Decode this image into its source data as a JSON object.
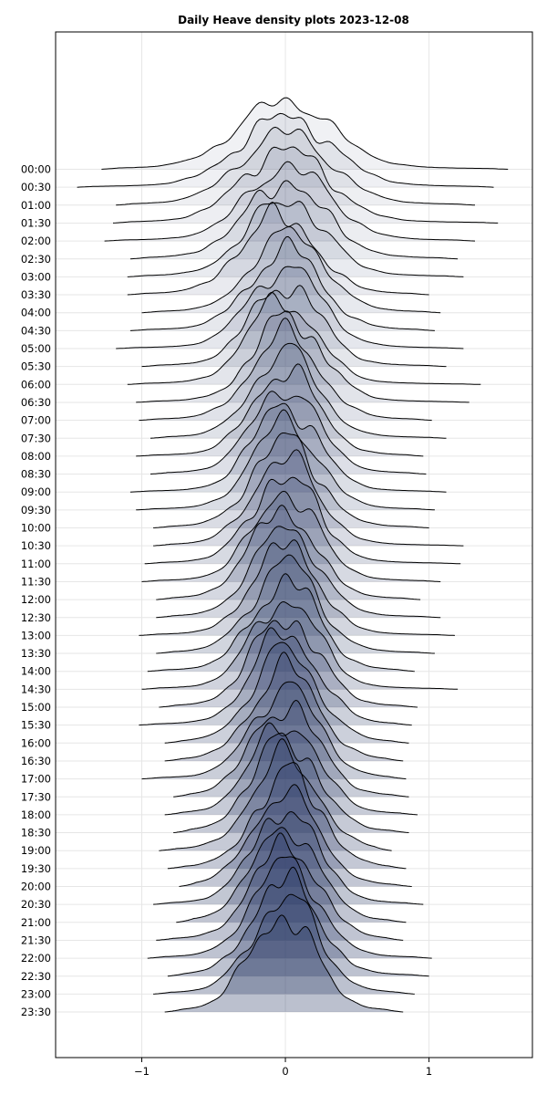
{
  "chart_data": {
    "type": "area",
    "subtype": "ridgeline-density",
    "title": "Daily Heave density plots 2023-12-08",
    "xlabel": "",
    "ylabel": "",
    "xlim": [
      -1.6,
      1.72
    ],
    "x_ticks": [
      -1,
      0,
      1
    ],
    "x_tick_labels": [
      "−1",
      "0",
      "1"
    ],
    "grid": true,
    "fill_color": "#2b3a67",
    "fill_opacity_range": [
      0.07,
      0.32
    ],
    "line_color": "#000000",
    "series": [
      {
        "name": "00:00",
        "range": [
          -1.28,
          1.55
        ],
        "peak": 0.0,
        "spread": 0.32,
        "amp": 0.92
      },
      {
        "name": "00:30",
        "range": [
          -1.45,
          1.45
        ],
        "peak": 0.0,
        "spread": 0.31,
        "amp": 0.94
      },
      {
        "name": "01:00",
        "range": [
          -1.18,
          1.32
        ],
        "peak": 0.0,
        "spread": 0.3,
        "amp": 0.97
      },
      {
        "name": "01:30",
        "range": [
          -1.2,
          1.48
        ],
        "peak": 0.0,
        "spread": 0.29,
        "amp": 0.99
      },
      {
        "name": "02:00",
        "range": [
          -1.26,
          1.32
        ],
        "peak": 0.02,
        "spread": 0.28,
        "amp": 1.0
      },
      {
        "name": "02:30",
        "range": [
          -1.08,
          1.2
        ],
        "peak": 0.0,
        "spread": 0.27,
        "amp": 1.02
      },
      {
        "name": "03:00",
        "range": [
          -1.1,
          1.24
        ],
        "peak": 0.0,
        "spread": 0.26,
        "amp": 1.04
      },
      {
        "name": "03:30",
        "range": [
          -1.1,
          1.0
        ],
        "peak": -0.05,
        "spread": 0.25,
        "amp": 1.06
      },
      {
        "name": "04:00",
        "range": [
          -1.0,
          1.08
        ],
        "peak": 0.02,
        "spread": 0.24,
        "amp": 1.08
      },
      {
        "name": "04:30",
        "range": [
          -1.08,
          1.04
        ],
        "peak": 0.0,
        "spread": 0.24,
        "amp": 1.08
      },
      {
        "name": "05:00",
        "range": [
          -1.18,
          1.24
        ],
        "peak": 0.0,
        "spread": 0.24,
        "amp": 1.1
      },
      {
        "name": "05:30",
        "range": [
          -1.0,
          1.12
        ],
        "peak": 0.0,
        "spread": 0.23,
        "amp": 1.12
      },
      {
        "name": "06:00",
        "range": [
          -1.1,
          1.36
        ],
        "peak": -0.02,
        "spread": 0.23,
        "amp": 1.14
      },
      {
        "name": "06:30",
        "range": [
          -1.04,
          1.28
        ],
        "peak": 0.02,
        "spread": 0.23,
        "amp": 1.14
      },
      {
        "name": "07:00",
        "range": [
          -1.02,
          1.02
        ],
        "peak": 0.0,
        "spread": 0.23,
        "amp": 1.14
      },
      {
        "name": "07:30",
        "range": [
          -0.94,
          1.12
        ],
        "peak": 0.0,
        "spread": 0.22,
        "amp": 1.16
      },
      {
        "name": "08:00",
        "range": [
          -1.04,
          0.96
        ],
        "peak": 0.0,
        "spread": 0.22,
        "amp": 1.16
      },
      {
        "name": "08:30",
        "range": [
          -0.94,
          0.98
        ],
        "peak": 0.0,
        "spread": 0.22,
        "amp": 1.17
      },
      {
        "name": "09:00",
        "range": [
          -1.08,
          1.12
        ],
        "peak": 0.0,
        "spread": 0.22,
        "amp": 1.17
      },
      {
        "name": "09:30",
        "range": [
          -1.04,
          1.04
        ],
        "peak": 0.0,
        "spread": 0.22,
        "amp": 1.18
      },
      {
        "name": "10:00",
        "range": [
          -0.92,
          1.0
        ],
        "peak": 0.0,
        "spread": 0.22,
        "amp": 1.18
      },
      {
        "name": "10:30",
        "range": [
          -0.92,
          1.24
        ],
        "peak": 0.0,
        "spread": 0.22,
        "amp": 1.18
      },
      {
        "name": "11:00",
        "range": [
          -0.98,
          1.22
        ],
        "peak": 0.0,
        "spread": 0.22,
        "amp": 1.19
      },
      {
        "name": "11:30",
        "range": [
          -1.0,
          1.08
        ],
        "peak": 0.0,
        "spread": 0.22,
        "amp": 1.19
      },
      {
        "name": "12:00",
        "range": [
          -0.9,
          0.94
        ],
        "peak": -0.02,
        "spread": 0.22,
        "amp": 1.2
      },
      {
        "name": "12:30",
        "range": [
          -0.9,
          1.08
        ],
        "peak": 0.0,
        "spread": 0.22,
        "amp": 1.2
      },
      {
        "name": "13:00",
        "range": [
          -1.02,
          1.18
        ],
        "peak": 0.0,
        "spread": 0.22,
        "amp": 1.21
      },
      {
        "name": "13:30",
        "range": [
          -0.9,
          1.04
        ],
        "peak": 0.0,
        "spread": 0.22,
        "amp": 1.21
      },
      {
        "name": "14:00",
        "range": [
          -0.96,
          0.9
        ],
        "peak": 0.0,
        "spread": 0.22,
        "amp": 1.22
      },
      {
        "name": "14:30",
        "range": [
          -1.0,
          1.2
        ],
        "peak": 0.0,
        "spread": 0.22,
        "amp": 1.22
      },
      {
        "name": "15:00",
        "range": [
          -0.88,
          0.92
        ],
        "peak": 0.0,
        "spread": 0.22,
        "amp": 1.22
      },
      {
        "name": "15:30",
        "range": [
          -1.02,
          0.88
        ],
        "peak": 0.0,
        "spread": 0.22,
        "amp": 1.23
      },
      {
        "name": "16:00",
        "range": [
          -0.84,
          0.86
        ],
        "peak": 0.0,
        "spread": 0.22,
        "amp": 1.23
      },
      {
        "name": "16:30",
        "range": [
          -0.84,
          0.82
        ],
        "peak": 0.0,
        "spread": 0.22,
        "amp": 1.24
      },
      {
        "name": "17:00",
        "range": [
          -1.0,
          0.84
        ],
        "peak": 0.0,
        "spread": 0.22,
        "amp": 1.24
      },
      {
        "name": "17:30",
        "range": [
          -0.78,
          0.86
        ],
        "peak": 0.0,
        "spread": 0.22,
        "amp": 1.25
      },
      {
        "name": "18:00",
        "range": [
          -0.84,
          0.92
        ],
        "peak": 0.0,
        "spread": 0.22,
        "amp": 1.25
      },
      {
        "name": "18:30",
        "range": [
          -0.78,
          0.86
        ],
        "peak": 0.0,
        "spread": 0.22,
        "amp": 1.26
      },
      {
        "name": "19:00",
        "range": [
          -0.88,
          0.74
        ],
        "peak": 0.0,
        "spread": 0.22,
        "amp": 1.26
      },
      {
        "name": "19:30",
        "range": [
          -0.82,
          0.84
        ],
        "peak": 0.02,
        "spread": 0.22,
        "amp": 1.27
      },
      {
        "name": "20:00",
        "range": [
          -0.74,
          0.88
        ],
        "peak": 0.0,
        "spread": 0.22,
        "amp": 1.27
      },
      {
        "name": "20:30",
        "range": [
          -0.92,
          0.96
        ],
        "peak": 0.0,
        "spread": 0.22,
        "amp": 1.28
      },
      {
        "name": "21:00",
        "range": [
          -0.76,
          0.84
        ],
        "peak": 0.0,
        "spread": 0.22,
        "amp": 1.28
      },
      {
        "name": "21:30",
        "range": [
          -0.9,
          0.82
        ],
        "peak": 0.0,
        "spread": 0.22,
        "amp": 1.29
      },
      {
        "name": "22:00",
        "range": [
          -0.96,
          1.02
        ],
        "peak": 0.0,
        "spread": 0.22,
        "amp": 1.29
      },
      {
        "name": "22:30",
        "range": [
          -0.82,
          1.0
        ],
        "peak": 0.0,
        "spread": 0.22,
        "amp": 1.3
      },
      {
        "name": "23:00",
        "range": [
          -0.92,
          0.9
        ],
        "peak": 0.0,
        "spread": 0.22,
        "amp": 1.3
      },
      {
        "name": "23:30",
        "range": [
          -0.84,
          0.82
        ],
        "peak": -0.02,
        "spread": 0.22,
        "amp": 1.31
      }
    ]
  }
}
